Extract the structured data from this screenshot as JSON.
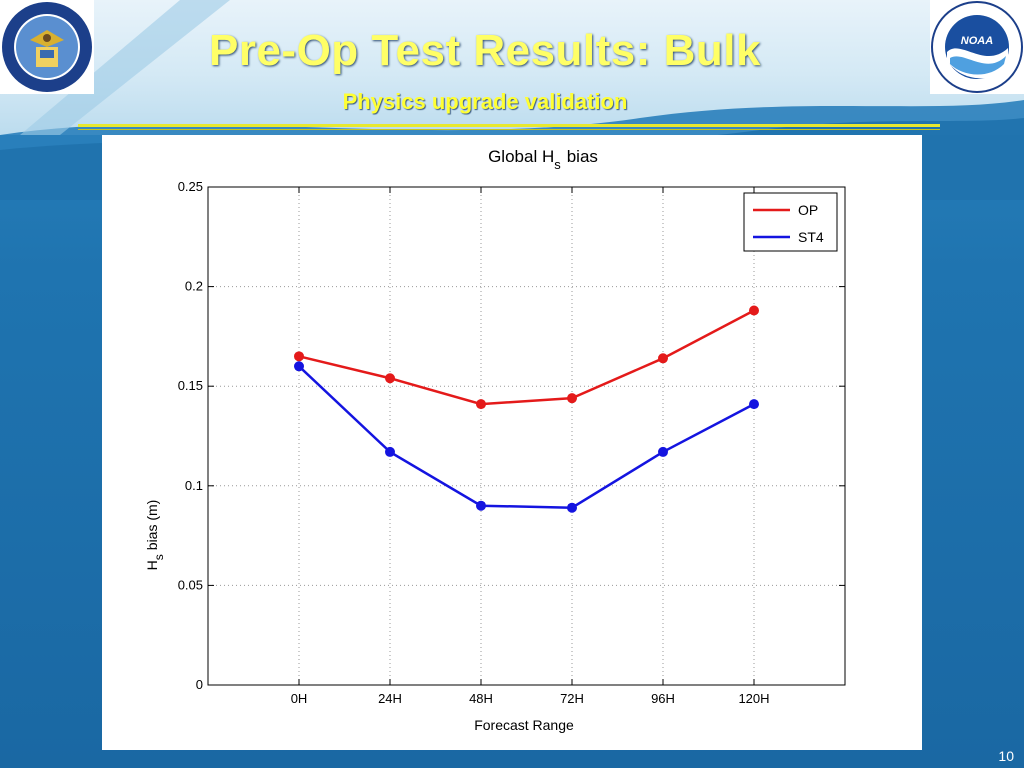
{
  "slide": {
    "title": "Pre-Op Test Results: Bulk",
    "subtitle": "Physics upgrade validation",
    "page_number": "10"
  },
  "logos": {
    "left_ring_text": "DEPARTMENT OF COMMERCE • UNITED STATES OF AMERICA",
    "right_ring_text": "NATIONAL OCEANIC AND ATMOSPHERIC ADMINISTRATION • U.S. DEPARTMENT OF COMMERCE",
    "right_center_text": "NOAA"
  },
  "colors": {
    "op": "#e41a1a",
    "st4": "#1414e0",
    "title": "#ffff66"
  },
  "chart_data": {
    "type": "line",
    "title": "Global H",
    "title_subscript": "s",
    "title_suffix": "bias",
    "xlabel": "Forecast Range",
    "ylabel": "H",
    "ylabel_subscript": "s",
    "ylabel_suffix": "bias (m)",
    "categories": [
      "0H",
      "24H",
      "48H",
      "72H",
      "96H",
      "120H"
    ],
    "ylim": [
      0,
      0.25
    ],
    "yticks": [
      "0",
      "0.05",
      "0.1",
      "0.15",
      "0.2",
      "0.25"
    ],
    "grid": true,
    "legend_position": "top-right",
    "series": [
      {
        "name": "OP",
        "values": [
          0.165,
          0.154,
          0.141,
          0.144,
          0.164,
          0.188
        ]
      },
      {
        "name": "ST4",
        "values": [
          0.16,
          0.117,
          0.09,
          0.089,
          0.117,
          0.141
        ]
      }
    ]
  }
}
